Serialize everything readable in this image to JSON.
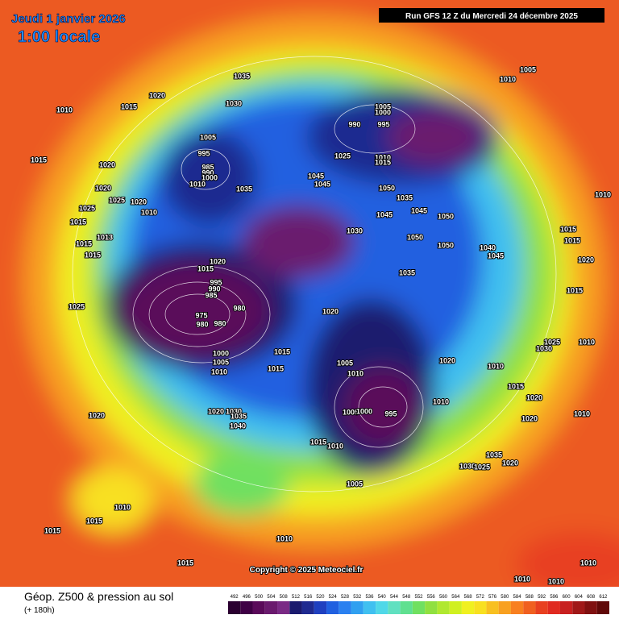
{
  "header": {
    "date": "Jeudi 1 janvier 2026",
    "time": "1:00 locale",
    "run": "Run GFS 12 Z du Mercredi 24 décembre 2025"
  },
  "footer": {
    "title": "Géop. Z500 & pression au sol",
    "subtitle": "(+ 180h)",
    "copyright": "Copyright © 2025 Meteociel.fr"
  },
  "legend": {
    "ticks": [
      "492",
      "496",
      "500",
      "504",
      "508",
      "512",
      "516",
      "520",
      "524",
      "528",
      "532",
      "536",
      "540",
      "544",
      "548",
      "552",
      "556",
      "560",
      "564",
      "568",
      "572",
      "576",
      "580",
      "584",
      "588",
      "592",
      "596",
      "600",
      "604",
      "608",
      "612"
    ],
    "colors": [
      "#2a0030",
      "#3f0045",
      "#5a0a5a",
      "#6a1a6e",
      "#7a2a85",
      "#1a1a6e",
      "#1f2a90",
      "#1f40c0",
      "#2060e0",
      "#2a80f0",
      "#30a0f0",
      "#40c0f0",
      "#50d8e8",
      "#60e0c0",
      "#60e090",
      "#70e060",
      "#90e040",
      "#b0e830",
      "#d0f020",
      "#f0f020",
      "#f8e020",
      "#f8c020",
      "#f8a020",
      "#f88020",
      "#f06020",
      "#e84020",
      "#e02a20",
      "#c82020",
      "#a01818",
      "#801010",
      "#600808"
    ]
  },
  "isobar_labels": [
    "1035",
    "1005",
    "1010",
    "1010",
    "1015",
    "1020",
    "1030",
    "1005",
    "1000",
    "990",
    "995",
    "1005",
    "995",
    "985",
    "990",
    "1000",
    "1010",
    "1035",
    "1015",
    "1020",
    "1025",
    "1010",
    "1015",
    "1045",
    "1045",
    "1050",
    "1020",
    "1025",
    "1020",
    "1010",
    "1025",
    "1015",
    "1013",
    "1015",
    "1015",
    "1035",
    "1045",
    "1045",
    "1050",
    "1030",
    "1050",
    "1050",
    "1040",
    "1045",
    "1015",
    "1015",
    "1020",
    "1010",
    "1020",
    "1015",
    "995",
    "990",
    "985",
    "980",
    "975",
    "980",
    "980",
    "1035",
    "1015",
    "1020",
    "1025",
    "1000",
    "1005",
    "1010",
    "1015",
    "1015",
    "1005",
    "1010",
    "1020",
    "1010",
    "1030",
    "1025",
    "1010",
    "1015",
    "1020",
    "1010",
    "1020",
    "1010",
    "1020",
    "1020",
    "1030",
    "1035",
    "1040",
    "1005",
    "1000",
    "995",
    "1015",
    "1010",
    "1035",
    "1030",
    "1025",
    "1020",
    "1005",
    "1010",
    "1015",
    "1015",
    "1010",
    "1015",
    "1010",
    "1010",
    "1010"
  ]
}
